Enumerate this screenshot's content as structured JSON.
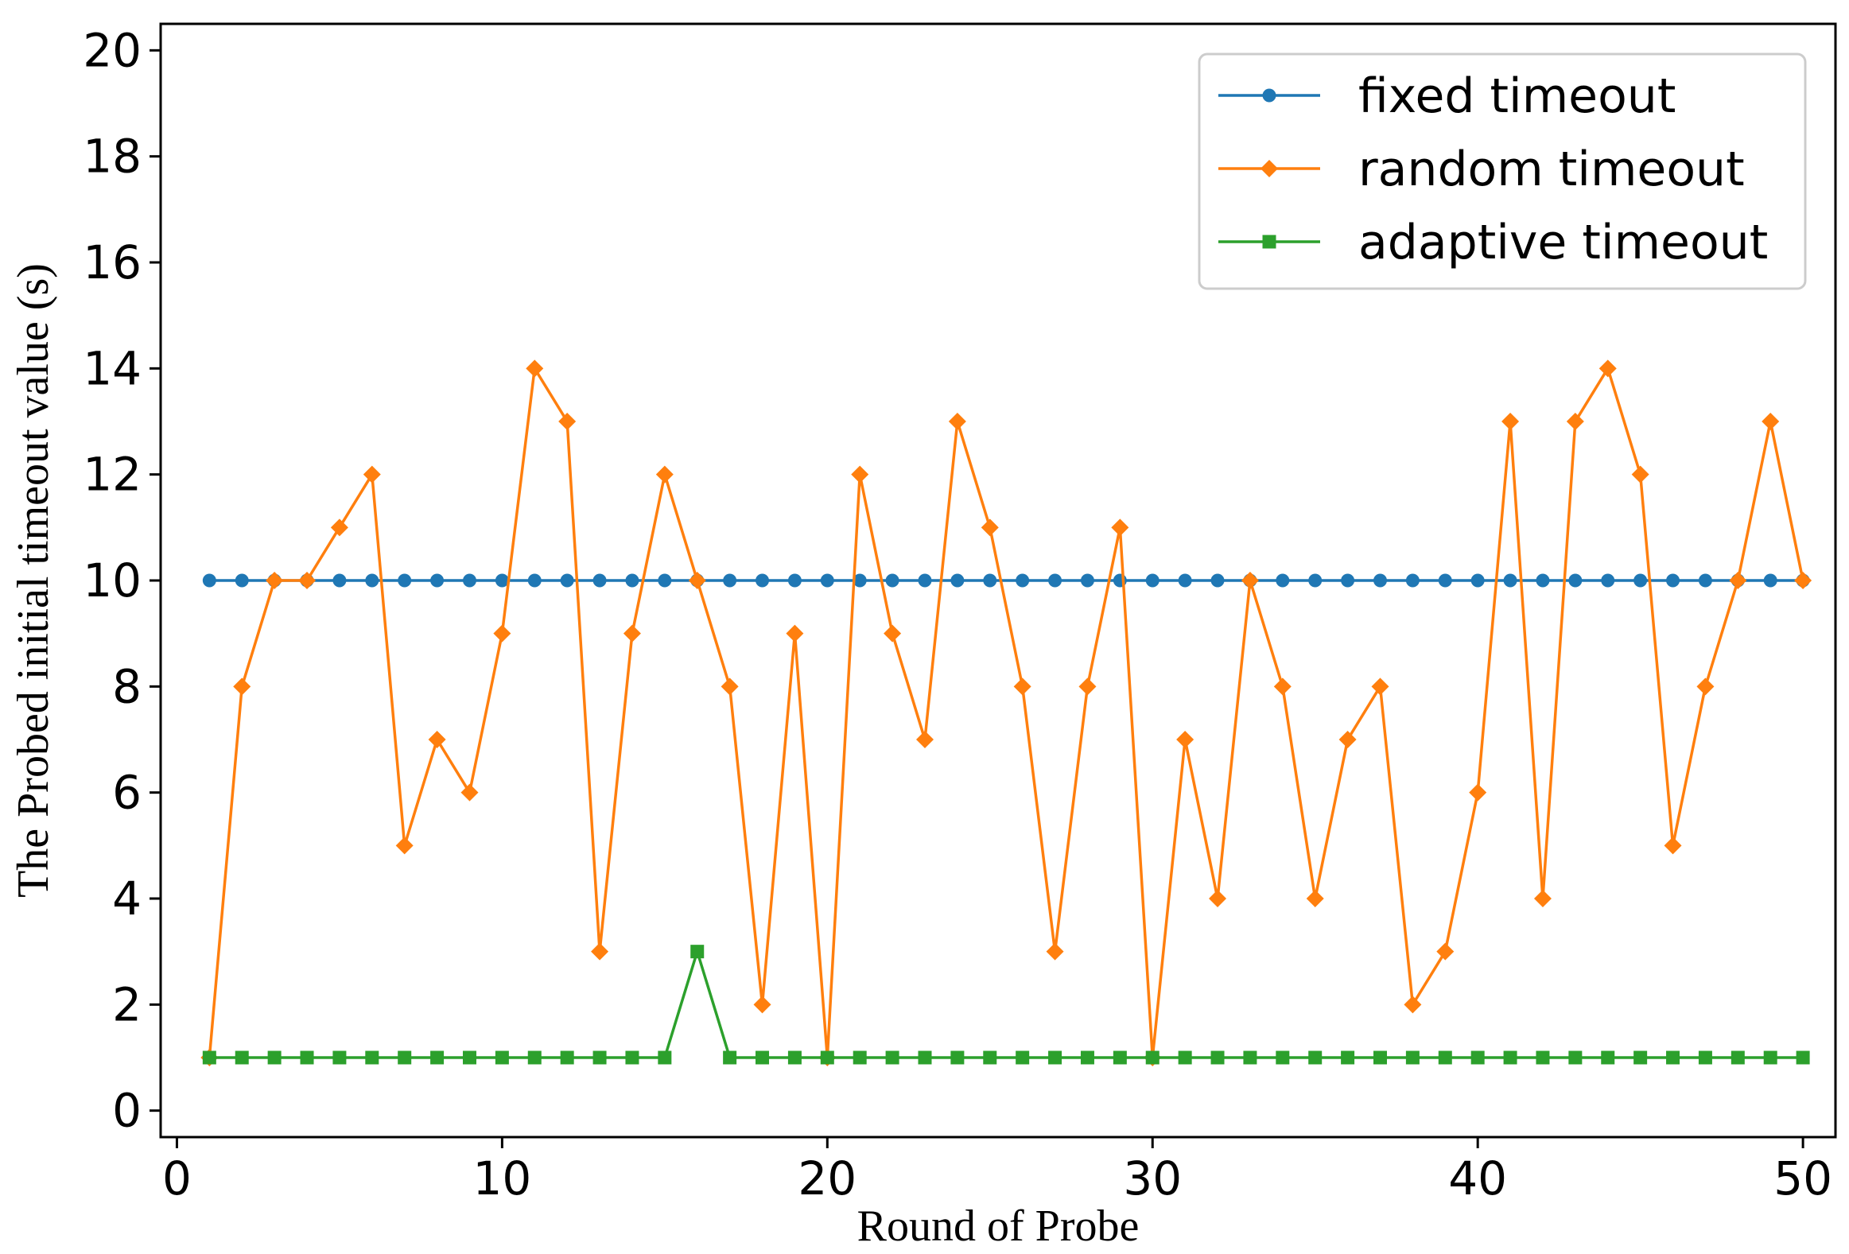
{
  "chart_data": {
    "type": "line",
    "title": "",
    "xlabel": "Round of Probe",
    "ylabel": "The Probed initial timeout value (s)",
    "xlim": [
      -0.5,
      51
    ],
    "ylim": [
      -0.5,
      20.5
    ],
    "xticks": [
      0,
      10,
      20,
      30,
      40,
      50
    ],
    "yticks": [
      0,
      2,
      4,
      6,
      8,
      10,
      12,
      14,
      16,
      18,
      20
    ],
    "grid": false,
    "legend_position": "top-right",
    "x": [
      1,
      2,
      3,
      4,
      5,
      6,
      7,
      8,
      9,
      10,
      11,
      12,
      13,
      14,
      15,
      16,
      17,
      18,
      19,
      20,
      21,
      22,
      23,
      24,
      25,
      26,
      27,
      28,
      29,
      30,
      31,
      32,
      33,
      34,
      35,
      36,
      37,
      38,
      39,
      40,
      41,
      42,
      43,
      44,
      45,
      46,
      47,
      48,
      49,
      50
    ],
    "series": [
      {
        "name": "fixed timeout",
        "color": "#1f77b4",
        "marker": "circle",
        "values": [
          10,
          10,
          10,
          10,
          10,
          10,
          10,
          10,
          10,
          10,
          10,
          10,
          10,
          10,
          10,
          10,
          10,
          10,
          10,
          10,
          10,
          10,
          10,
          10,
          10,
          10,
          10,
          10,
          10,
          10,
          10,
          10,
          10,
          10,
          10,
          10,
          10,
          10,
          10,
          10,
          10,
          10,
          10,
          10,
          10,
          10,
          10,
          10,
          10,
          10
        ]
      },
      {
        "name": "random timeout",
        "color": "#ff7f0e",
        "marker": "diamond",
        "values": [
          1,
          8,
          10,
          10,
          11,
          12,
          5,
          7,
          6,
          9,
          14,
          13,
          3,
          9,
          12,
          10,
          8,
          2,
          9,
          1,
          12,
          9,
          7,
          13,
          11,
          8,
          3,
          8,
          11,
          1,
          7,
          4,
          10,
          8,
          4,
          7,
          8,
          2,
          3,
          6,
          13,
          4,
          13,
          14,
          12,
          5,
          8,
          10,
          13,
          10
        ]
      },
      {
        "name": "adaptive timeout",
        "color": "#2ca02c",
        "marker": "square",
        "values": [
          1,
          1,
          1,
          1,
          1,
          1,
          1,
          1,
          1,
          1,
          1,
          1,
          1,
          1,
          1,
          3,
          1,
          1,
          1,
          1,
          1,
          1,
          1,
          1,
          1,
          1,
          1,
          1,
          1,
          1,
          1,
          1,
          1,
          1,
          1,
          1,
          1,
          1,
          1,
          1,
          1,
          1,
          1,
          1,
          1,
          1,
          1,
          1,
          1,
          1
        ]
      }
    ]
  }
}
